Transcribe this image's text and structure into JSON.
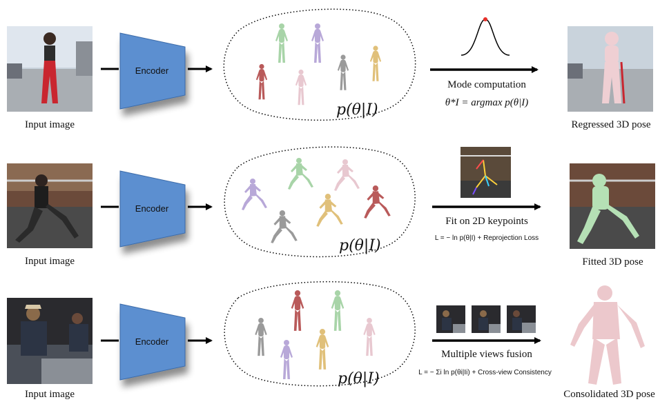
{
  "rows": [
    {
      "input_label": "Input image",
      "encoder_label": "Encoder",
      "distribution_label": "p(θ|I)",
      "method_label": "Mode computation",
      "formula": "θ*I = argmax p(θ|I)",
      "output_label": "Regressed 3D pose"
    },
    {
      "input_label": "Input image",
      "encoder_label": "Encoder",
      "distribution_label": "p(θ|I)",
      "method_label": "Fit on 2D keypoints",
      "formula": "L = − ln p(θ|I) + Reprojection Loss",
      "output_label": "Fitted 3D pose"
    },
    {
      "input_label": "Input image",
      "encoder_label": "Encoder",
      "distribution_label": "p(θ|I)",
      "method_label": "Multiple views fusion",
      "formula": "L = − Σi ln p(θi|Ii) + Cross-view Consistency",
      "output_label": "Consolidated 3D pose"
    }
  ],
  "colors": {
    "encoder_fill": "#5b8fd0",
    "encoder_stroke": "#3a6aa8",
    "gaussian_peak": "#e8302a",
    "body_colors": [
      "#b95a5a",
      "#a8d4a8",
      "#b8a8d8",
      "#e8c8d0",
      "#9a9a9a",
      "#e0c07a"
    ]
  },
  "icons": {
    "input_photo": "photo-icon",
    "body_mesh": "human-figure-icon",
    "gaussian": "gaussian-curve-icon"
  }
}
